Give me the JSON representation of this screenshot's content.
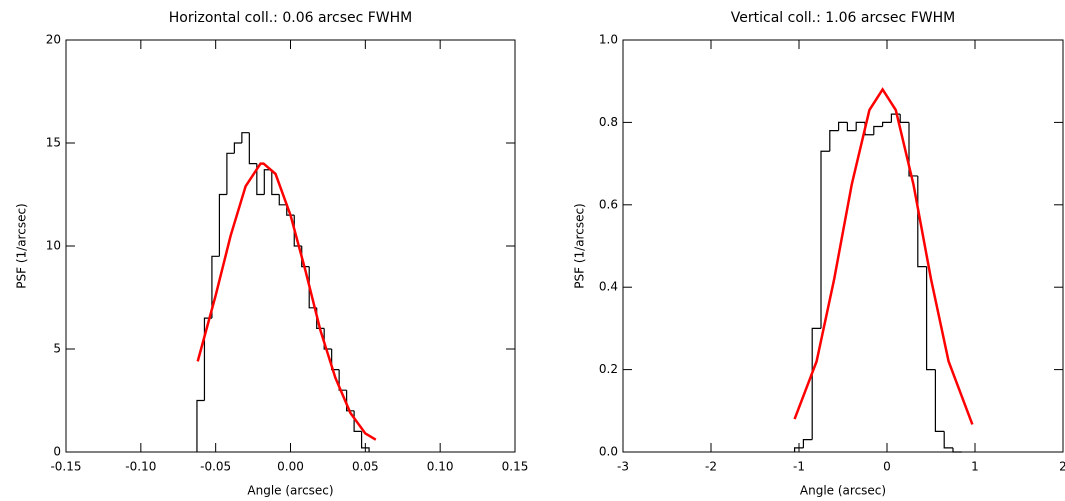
{
  "chart_data": [
    {
      "type": "histogram",
      "title": "Horizontal coll.: 0.06 arcsec FWHM",
      "x_label": "Angle (arcsec)",
      "y_label": "PSF (1/arcsec)",
      "bins": [
        -0.0625,
        -0.0575,
        -0.0525,
        -0.0475,
        -0.0425,
        -0.0375,
        -0.0325,
        -0.0275,
        -0.0225,
        -0.0175,
        -0.0125,
        -0.0075,
        -0.0025,
        0.0025,
        0.0075,
        0.0125,
        0.0175,
        0.0225,
        0.0275,
        0.0325,
        0.0375,
        0.0425,
        0.0475,
        0.0525
      ],
      "values": [
        2.5,
        6.5,
        9.5,
        12.5,
        14.5,
        15.0,
        15.5,
        14.0,
        12.5,
        13.7,
        12.5,
        12.0,
        11.5,
        10.0,
        9.0,
        7.0,
        6.0,
        5.0,
        4.0,
        3.0,
        2.0,
        1.0,
        0.2
      ],
      "color": "#000000",
      "fit": {
        "x": [
          -0.062,
          -0.05,
          -0.04,
          -0.03,
          -0.02,
          -0.018,
          -0.01,
          0,
          0.01,
          0.02,
          0.03,
          0.04,
          0.05,
          0.057
        ],
        "values": [
          4.4,
          7.6,
          10.5,
          12.9,
          14.0,
          14.0,
          13.5,
          11.5,
          8.8,
          5.9,
          3.6,
          1.9,
          0.9,
          0.6
        ],
        "color": "#ff0000"
      },
      "xlim": [
        -0.15,
        0.15
      ],
      "xticks": [
        {
          "value": -0.15,
          "label": "-0.15"
        },
        {
          "value": -0.1,
          "label": "-0.10"
        },
        {
          "value": -0.05,
          "label": "-0.05"
        },
        {
          "value": 0,
          "label": "0.00"
        },
        {
          "value": 0.05,
          "label": "0.05"
        },
        {
          "value": 0.1,
          "label": "0.10"
        },
        {
          "value": 0.15,
          "label": "0.15"
        }
      ],
      "ylim": [
        0,
        20
      ],
      "yticks": [
        0,
        5,
        10,
        15,
        20
      ]
    },
    {
      "type": "histogram",
      "title": "Vertical coll.: 1.06 arcsec FWHM",
      "x_label": "Angle (arcsec)",
      "y_label": "PSF (1/arcsec)",
      "bins": [
        -1.05,
        -0.95,
        -0.85,
        -0.75,
        -0.65,
        -0.55,
        -0.45,
        -0.35,
        -0.25,
        -0.15,
        -0.05,
        0.05,
        0.15,
        0.25,
        0.35,
        0.45,
        0.55,
        0.65,
        0.75,
        0.85
      ],
      "values": [
        0.01,
        0.03,
        0.3,
        0.73,
        0.78,
        0.8,
        0.78,
        0.8,
        0.77,
        0.79,
        0.8,
        0.82,
        0.8,
        0.67,
        0.45,
        0.2,
        0.05,
        0.01,
        0.0
      ],
      "color": "#000000",
      "fit": {
        "x": [
          -1.05,
          -0.8,
          -0.6,
          -0.4,
          -0.2,
          -0.05,
          0.1,
          0.3,
          0.5,
          0.7,
          0.97
        ],
        "values": [
          0.08,
          0.22,
          0.42,
          0.65,
          0.83,
          0.88,
          0.83,
          0.65,
          0.42,
          0.22,
          0.067
        ],
        "color": "#ff0000"
      },
      "xlim": [
        -3,
        2
      ],
      "xticks": [
        -3,
        -2,
        -1,
        0,
        1,
        2
      ],
      "ylim": [
        0,
        1
      ],
      "yticks": [
        {
          "value": 0,
          "label": "0.0"
        },
        {
          "value": 0.2,
          "label": "0.2"
        },
        {
          "value": 0.4,
          "label": "0.4"
        },
        {
          "value": 0.6,
          "label": "0.6"
        },
        {
          "value": 0.8,
          "label": "0.8"
        },
        {
          "value": 1,
          "label": "1.0"
        }
      ]
    }
  ]
}
